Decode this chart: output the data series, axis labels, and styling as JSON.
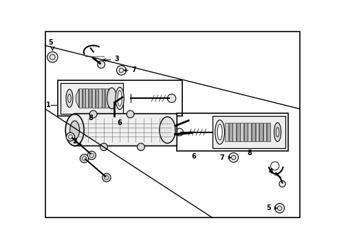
{
  "bg_color": "#ffffff",
  "line_color": "#000000",
  "gray_color": "#666666",
  "light_gray": "#bbbbbb",
  "fig_width": 4.9,
  "fig_height": 3.6,
  "dpi": 100
}
